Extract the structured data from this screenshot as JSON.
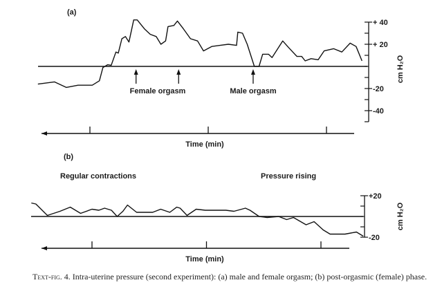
{
  "chart_data": [
    {
      "type": "line",
      "panel_label": "(a)",
      "title": "",
      "xlabel": "Time (min)",
      "ylabel": "cm H₂O",
      "ylim": [
        -50,
        40
      ],
      "x_ticks": [
        1,
        2,
        3
      ],
      "y_ticks": [
        {
          "value": 40,
          "label": "+ 40"
        },
        {
          "value": 20,
          "label": "+ 20"
        },
        {
          "value": -20,
          "label": "-20"
        },
        {
          "value": -40,
          "label": "-40"
        }
      ],
      "y_minor_step": 10,
      "baseline": 0,
      "annotations": [
        {
          "text": "Female orgasm",
          "arrows_at": [
            1.39,
            1.75
          ]
        },
        {
          "text": "Male orgasm",
          "arrows_at": [
            2.38
          ]
        }
      ],
      "series": [
        {
          "name": "Intra-uterine pressure",
          "x": [
            0.56,
            0.7,
            0.8,
            0.9,
            1.02,
            1.08,
            1.11,
            1.15,
            1.18,
            1.22,
            1.24,
            1.27,
            1.3,
            1.33,
            1.37,
            1.4,
            1.46,
            1.51,
            1.56,
            1.6,
            1.64,
            1.66,
            1.71,
            1.74,
            1.79,
            1.85,
            1.91,
            1.96,
            2.03,
            2.1,
            2.17,
            2.24,
            2.25,
            2.29,
            2.33,
            2.39,
            2.43,
            2.46,
            2.51,
            2.54,
            2.63,
            2.68,
            2.75,
            2.79,
            2.82,
            2.87,
            2.93,
            2.98,
            3.06,
            3.13,
            3.2,
            3.25,
            3.3
          ],
          "y": [
            -16,
            -14,
            -19,
            -17,
            -17,
            -13,
            -1,
            1.5,
            1,
            13,
            12,
            25,
            27,
            22,
            42,
            42,
            34,
            29,
            27,
            20,
            23,
            36,
            37,
            41,
            34,
            25,
            23,
            14,
            18,
            19,
            20,
            19,
            31,
            30,
            20,
            0,
            0,
            11,
            11,
            8,
            23,
            17,
            9,
            9,
            5,
            7,
            6,
            14,
            16,
            13,
            21,
            18,
            5
          ]
        }
      ]
    },
    {
      "type": "line",
      "panel_label": "(b)",
      "title": "",
      "xlabel": "Time (min)",
      "ylabel": "cm H₂O",
      "ylim": [
        -20,
        20
      ],
      "x_ticks": [
        1,
        2,
        3
      ],
      "y_ticks": [
        {
          "value": 20,
          "label": "+20"
        },
        {
          "value": -20,
          "label": "-20"
        }
      ],
      "y_minor_step": 10,
      "baseline": 0,
      "annotations": [
        {
          "text": "Regular contractions"
        },
        {
          "text": "Pressure rising"
        }
      ],
      "series": [
        {
          "name": "Intra-uterine pressure",
          "x": [
            0.47,
            0.51,
            0.61,
            0.72,
            0.81,
            0.9,
            1.0,
            1.06,
            1.11,
            1.17,
            1.22,
            1.27,
            1.31,
            1.39,
            1.53,
            1.6,
            1.68,
            1.74,
            1.77,
            1.83,
            1.91,
            1.99,
            2.08,
            2.17,
            2.24,
            2.34,
            2.38,
            2.46,
            2.53,
            2.63,
            2.7,
            2.76,
            2.87,
            2.94,
            3.02,
            3.08,
            3.21,
            3.31,
            3.37
          ],
          "y": [
            13,
            12,
            1,
            5,
            9,
            3,
            7,
            6,
            8,
            6,
            0,
            5,
            11,
            4,
            4,
            7,
            4,
            9,
            8,
            1,
            7,
            6,
            6,
            6,
            5,
            8,
            6,
            0,
            -1,
            0,
            -3,
            -1,
            -8,
            -5,
            -13,
            -17,
            -17,
            -15,
            -19
          ]
        }
      ]
    }
  ],
  "caption": {
    "fig_label": "Text-fig. 4.",
    "text": " Intra-uterine pressure (second experiment): (a) male and female orgasm; (b) post-orgasmic (female) phase."
  }
}
